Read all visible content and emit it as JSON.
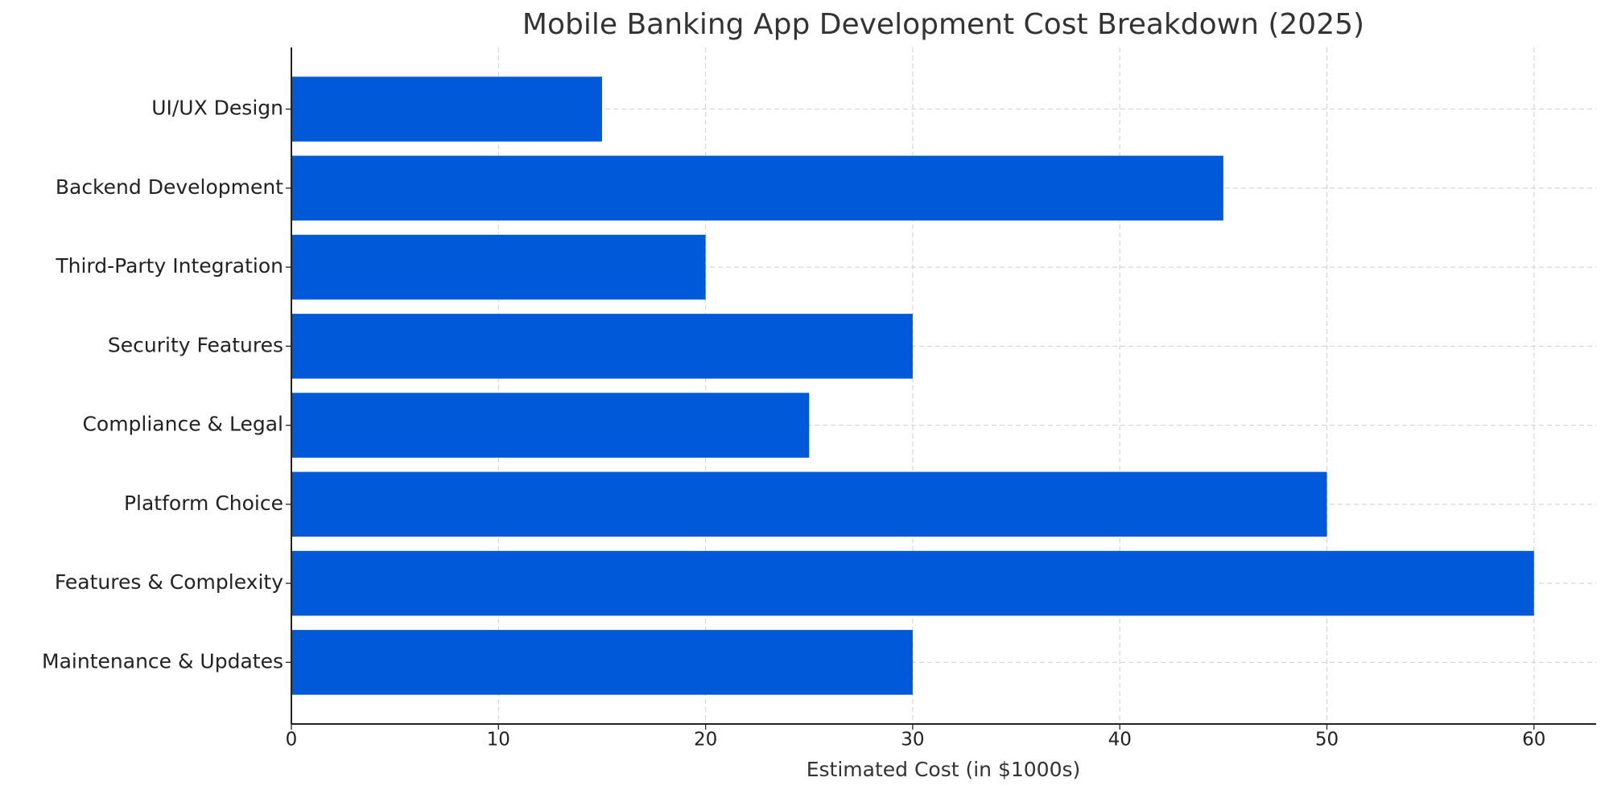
{
  "chart_data": {
    "type": "barh",
    "title": "Mobile Banking App Development Cost Breakdown (2025)",
    "xlabel": "Estimated Cost (in $1000s)",
    "categories": [
      "UI/UX Design",
      "Backend Development",
      "Third-Party Integration",
      "Security Features",
      "Compliance & Legal",
      "Platform Choice",
      "Features & Complexity",
      "Maintenance & Updates"
    ],
    "values": [
      15,
      45,
      20,
      30,
      25,
      50,
      60,
      30
    ],
    "color": "#0059d9",
    "xlim": [
      0,
      63
    ],
    "xticks": [
      0,
      10,
      20,
      30,
      40,
      50,
      60
    ],
    "grid": true
  }
}
